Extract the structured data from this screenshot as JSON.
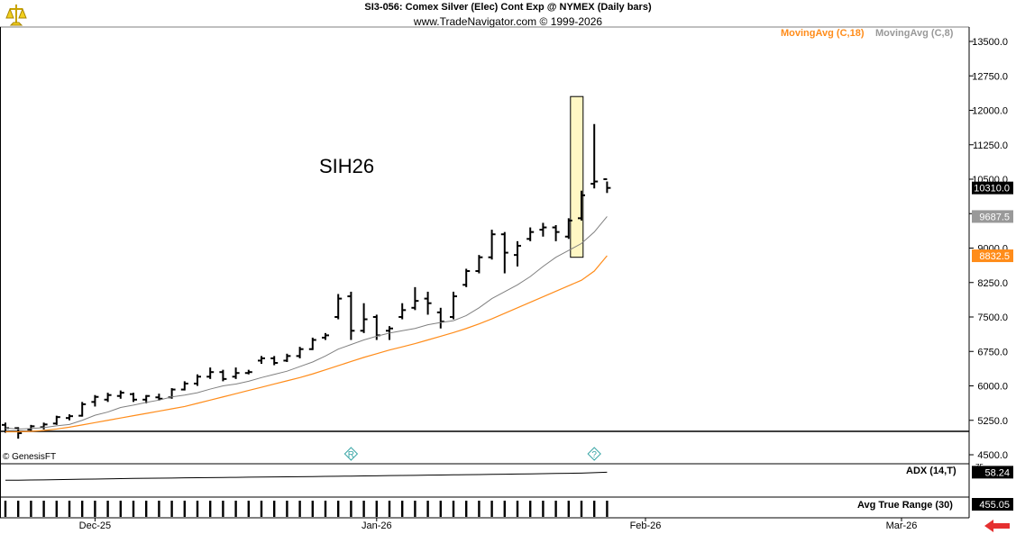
{
  "header": {
    "title": "SI3-056:  Comex Silver (Elec) Cont Exp @ NYMEX  (Daily bars)",
    "subtitle": "www.TradeNavigator.com © 1999-2026"
  },
  "logo_icon": "trade-navigator-logo-icon",
  "symbol_label": "SIH26",
  "credit": "© GenesisFT",
  "legend": {
    "ma18": "MovingAvg (C,18)",
    "ma8": "MovingAvg (C,8)"
  },
  "colors": {
    "ma18": "#ff8c1a",
    "ma8": "#808080",
    "bars": "#000000",
    "highlight_fill": "#fff7c4",
    "price_badge": "#000000",
    "ma8_badge": "#999999",
    "ma18_badge": "#ff8c1a",
    "marker": "#3aa6a6",
    "back_arrow": "#e53030"
  },
  "chart_data": {
    "type": "ohlc",
    "price_axis": {
      "ticks": [
        "13500.0",
        "12750.0",
        "12000.0",
        "11250.0",
        "10500.0",
        "9750.0",
        "9000.0",
        "8250.0",
        "7500.0",
        "6750.0",
        "6000.0",
        "5250.0",
        "4500.0"
      ],
      "range": [
        4500,
        13500
      ]
    },
    "x_axis": {
      "labels": [
        {
          "text": "Dec-25",
          "bar": 7
        },
        {
          "text": "Jan-26",
          "bar": 29
        },
        {
          "text": "Feb-26",
          "bar": 50
        },
        {
          "text": "Mar-26",
          "bar": 70
        }
      ]
    },
    "last_values": {
      "price": "10310.0",
      "ma8": "9687.5",
      "ma18": "8832.5",
      "adx": "58.24",
      "atr": "455.05"
    },
    "highlight_bar": 44,
    "markers": [
      {
        "glyph": "R",
        "bar": 27
      },
      {
        "glyph": "?",
        "bar": 46
      }
    ],
    "bars": [
      {
        "o": 5150,
        "h": 5200,
        "l": 4980,
        "c": 5080
      },
      {
        "o": 5080,
        "h": 5100,
        "l": 4850,
        "c": 4970
      },
      {
        "o": 5050,
        "h": 5150,
        "l": 5000,
        "c": 5120
      },
      {
        "o": 5100,
        "h": 5200,
        "l": 5050,
        "c": 5160
      },
      {
        "o": 5180,
        "h": 5350,
        "l": 5150,
        "c": 5320
      },
      {
        "o": 5300,
        "h": 5380,
        "l": 5250,
        "c": 5340
      },
      {
        "o": 5350,
        "h": 5650,
        "l": 5330,
        "c": 5600
      },
      {
        "o": 5650,
        "h": 5800,
        "l": 5550,
        "c": 5760
      },
      {
        "o": 5700,
        "h": 5850,
        "l": 5650,
        "c": 5800
      },
      {
        "o": 5780,
        "h": 5900,
        "l": 5720,
        "c": 5850
      },
      {
        "o": 5820,
        "h": 5850,
        "l": 5650,
        "c": 5700
      },
      {
        "o": 5700,
        "h": 5800,
        "l": 5620,
        "c": 5780
      },
      {
        "o": 5750,
        "h": 5830,
        "l": 5680,
        "c": 5720
      },
      {
        "o": 5750,
        "h": 5950,
        "l": 5720,
        "c": 5920
      },
      {
        "o": 5920,
        "h": 6100,
        "l": 5900,
        "c": 6050
      },
      {
        "o": 6050,
        "h": 6250,
        "l": 6000,
        "c": 6200
      },
      {
        "o": 6200,
        "h": 6400,
        "l": 6150,
        "c": 6300
      },
      {
        "o": 6300,
        "h": 6350,
        "l": 6100,
        "c": 6150
      },
      {
        "o": 6200,
        "h": 6400,
        "l": 6150,
        "c": 6280
      },
      {
        "o": 6280,
        "h": 6350,
        "l": 6250,
        "c": 6300
      },
      {
        "o": 6550,
        "h": 6650,
        "l": 6480,
        "c": 6600
      },
      {
        "o": 6600,
        "h": 6650,
        "l": 6450,
        "c": 6500
      },
      {
        "o": 6550,
        "h": 6700,
        "l": 6520,
        "c": 6650
      },
      {
        "o": 6650,
        "h": 6850,
        "l": 6600,
        "c": 6800
      },
      {
        "o": 6800,
        "h": 7050,
        "l": 6780,
        "c": 7000
      },
      {
        "o": 7050,
        "h": 7150,
        "l": 7000,
        "c": 7100
      },
      {
        "o": 7500,
        "h": 8000,
        "l": 7450,
        "c": 7900
      },
      {
        "o": 7950,
        "h": 8050,
        "l": 7000,
        "c": 7200
      },
      {
        "o": 7200,
        "h": 7800,
        "l": 7150,
        "c": 7450
      },
      {
        "o": 7500,
        "h": 7550,
        "l": 7000,
        "c": 7100
      },
      {
        "o": 7200,
        "h": 7300,
        "l": 7000,
        "c": 7250
      },
      {
        "o": 7500,
        "h": 7800,
        "l": 7450,
        "c": 7650
      },
      {
        "o": 7700,
        "h": 8150,
        "l": 7650,
        "c": 7850
      },
      {
        "o": 7900,
        "h": 8050,
        "l": 7550,
        "c": 7800
      },
      {
        "o": 7600,
        "h": 7700,
        "l": 7250,
        "c": 7400
      },
      {
        "o": 7500,
        "h": 8050,
        "l": 7450,
        "c": 7950
      },
      {
        "o": 8200,
        "h": 8550,
        "l": 8150,
        "c": 8500
      },
      {
        "o": 8500,
        "h": 8850,
        "l": 8450,
        "c": 8800
      },
      {
        "o": 8800,
        "h": 9400,
        "l": 8750,
        "c": 9300
      },
      {
        "o": 9300,
        "h": 9350,
        "l": 8450,
        "c": 8900
      },
      {
        "o": 8850,
        "h": 9150,
        "l": 8600,
        "c": 9050
      },
      {
        "o": 9200,
        "h": 9450,
        "l": 9150,
        "c": 9350
      },
      {
        "o": 9400,
        "h": 9550,
        "l": 9250,
        "c": 9450
      },
      {
        "o": 9450,
        "h": 9500,
        "l": 9150,
        "c": 9350
      },
      {
        "o": 9250,
        "h": 9650,
        "l": 9200,
        "c": 9600
      },
      {
        "o": 9650,
        "h": 10250,
        "l": 9600,
        "c": 10150
      },
      {
        "o": 10400,
        "h": 11700,
        "l": 10300,
        "c": 10450
      },
      {
        "o": 10500,
        "h": 10450,
        "l": 10200,
        "c": 10310
      }
    ],
    "ma8": [
      5080,
      5060,
      5070,
      5090,
      5130,
      5160,
      5250,
      5360,
      5430,
      5530,
      5580,
      5640,
      5690,
      5760,
      5800,
      5850,
      5930,
      6000,
      6040,
      6100,
      6180,
      6250,
      6320,
      6420,
      6520,
      6650,
      6800,
      6900,
      7000,
      7080,
      7150,
      7200,
      7250,
      7330,
      7380,
      7420,
      7530,
      7700,
      7900,
      8050,
      8200,
      8380,
      8600,
      8800,
      8950,
      9100,
      9350,
      9687.5
    ],
    "ma18": [
      5000,
      5000,
      5010,
      5030,
      5060,
      5100,
      5150,
      5200,
      5250,
      5300,
      5350,
      5400,
      5450,
      5500,
      5550,
      5620,
      5690,
      5760,
      5830,
      5900,
      5970,
      6040,
      6110,
      6180,
      6260,
      6350,
      6440,
      6530,
      6620,
      6700,
      6780,
      6850,
      6920,
      7000,
      7080,
      7160,
      7250,
      7350,
      7460,
      7580,
      7700,
      7820,
      7940,
      8060,
      8180,
      8300,
      8500,
      8832.5
    ],
    "adx": [
      38,
      38,
      38.5,
      39,
      39.5,
      40,
      40.5,
      41,
      41.5,
      42,
      42.5,
      43,
      43.3,
      43.6,
      44,
      44.3,
      44.7,
      45,
      45.3,
      45.6,
      46,
      46.3,
      46.6,
      47,
      47.3,
      47.7,
      48,
      48.4,
      48.8,
      49.2,
      49.6,
      50,
      50.4,
      50.8,
      51.2,
      51.6,
      52,
      52.4,
      52.8,
      53.2,
      53.6,
      54,
      54.5,
      55,
      55.5,
      56,
      57,
      58.24
    ],
    "adx_range": [
      0,
      75
    ],
    "adx_tick": "75",
    "atr_bar_count": 48
  }
}
